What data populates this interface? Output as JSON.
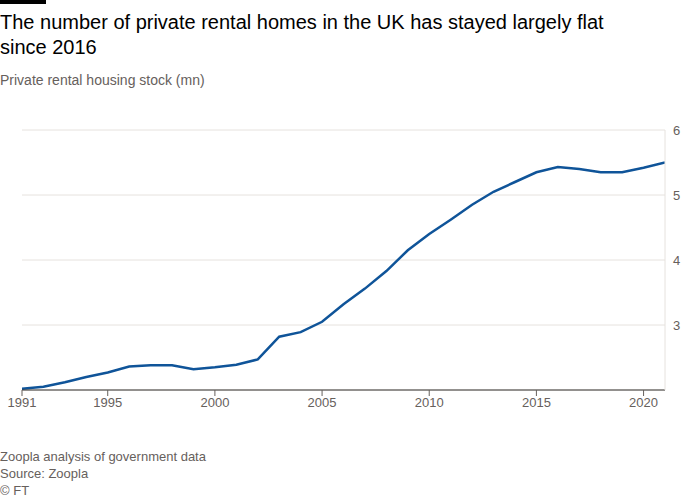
{
  "chart_data": {
    "type": "line",
    "title": "The number of private rental homes in the UK has stayed largely flat since 2016",
    "subtitle": "Private rental housing stock (mn)",
    "note": "Zoopla analysis of government data",
    "source": "Source: Zoopla",
    "credit": "© FT",
    "x": [
      1991,
      1992,
      1993,
      1994,
      1995,
      1996,
      1997,
      1998,
      1999,
      2000,
      2001,
      2002,
      2003,
      2004,
      2005,
      2006,
      2007,
      2008,
      2009,
      2010,
      2011,
      2012,
      2013,
      2014,
      2015,
      2016,
      2017,
      2018,
      2019,
      2020,
      2021
    ],
    "values": [
      2.02,
      2.05,
      2.12,
      2.2,
      2.27,
      2.36,
      2.38,
      2.38,
      2.32,
      2.35,
      2.39,
      2.47,
      2.82,
      2.89,
      3.05,
      3.32,
      3.56,
      3.83,
      4.15,
      4.4,
      4.62,
      4.85,
      5.05,
      5.2,
      5.35,
      5.43,
      5.4,
      5.35,
      5.35,
      5.42,
      5.5
    ],
    "color": "#0f5499",
    "xlim": [
      1991,
      2021
    ],
    "xticks": [
      1991,
      1995,
      2000,
      2005,
      2010,
      2015,
      2020
    ],
    "ylim": [
      2,
      6
    ],
    "yticks": [
      3,
      4,
      5,
      6
    ],
    "grid": true
  }
}
